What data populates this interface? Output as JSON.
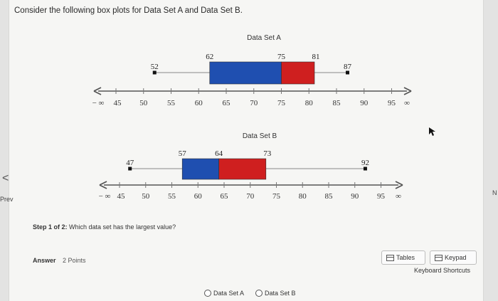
{
  "question": "Consider the following box plots for Data Set A and Data Set B.",
  "nav": {
    "prev_arrow": "<",
    "prev_label": "Prev",
    "next_label": "N"
  },
  "axis_ticks": [
    "45",
    "50",
    "55",
    "60",
    "65",
    "70",
    "75",
    "80",
    "85",
    "90",
    "95"
  ],
  "axis_neg_inf": "− ∞",
  "axis_pos_inf": "∞",
  "plots": [
    {
      "title": "Data Set A",
      "min": 52,
      "q1": 62,
      "median": 75,
      "q3": 81,
      "max": 87,
      "colors": {
        "left_box": "#1f4fb0",
        "right_box": "#cf1f1f"
      }
    },
    {
      "title": "Data Set B",
      "min": 47,
      "q1": 57,
      "median": 64,
      "q3": 73,
      "max": 92,
      "colors": {
        "left_box": "#1f4fb0",
        "right_box": "#cf1f1f"
      }
    }
  ],
  "step": {
    "prefix": "Step 1 of 2:",
    "text": " Which data set has the largest value?"
  },
  "answer": {
    "label": "Answer",
    "points": "2 Points"
  },
  "tools": {
    "tables": "Tables",
    "keypad": "Keypad",
    "shortcuts": "Keyboard Shortcuts"
  },
  "choices": [
    "Data Set A",
    "Data Set B"
  ]
}
